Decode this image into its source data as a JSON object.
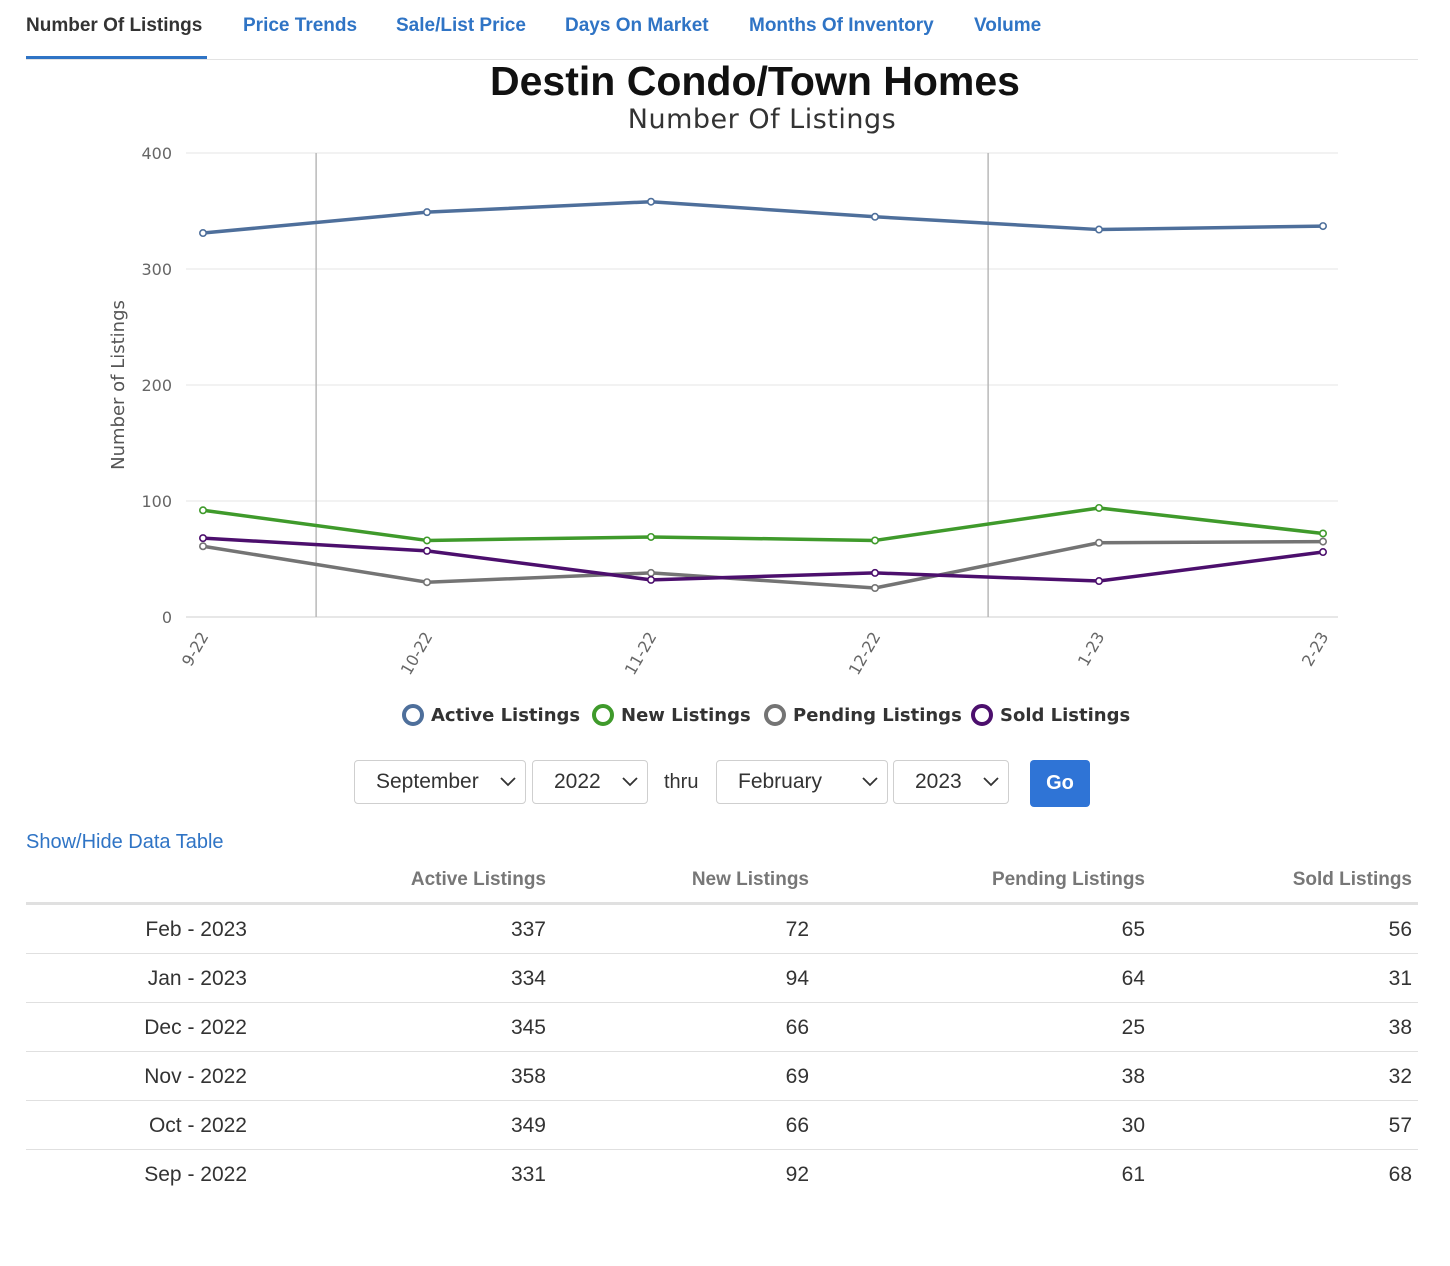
{
  "tabs": [
    {
      "label": "Number Of Listings",
      "active": true
    },
    {
      "label": "Price Trends",
      "active": false
    },
    {
      "label": "Sale/List Price",
      "active": false
    },
    {
      "label": "Days On Market",
      "active": false
    },
    {
      "label": "Months Of Inventory",
      "active": false
    },
    {
      "label": "Volume",
      "active": false
    }
  ],
  "title": "Destin Condo/Town Homes",
  "subtitle": "Number Of Listings",
  "chart_data": {
    "type": "line",
    "title": "Destin Condo/Town Homes",
    "subtitle": "Number Of Listings",
    "xlabel": "",
    "ylabel": "Number of Listings",
    "ylim": [
      0,
      400
    ],
    "yticks": [
      0,
      100,
      200,
      300,
      400
    ],
    "categories": [
      "9-22",
      "10-22",
      "11-22",
      "12-22",
      "1-23",
      "2-23"
    ],
    "grid": true,
    "year_markers_between": [
      [
        "9-22",
        "10-22"
      ],
      [
        "12-22",
        "1-23"
      ]
    ],
    "legend_position": "bottom",
    "series": [
      {
        "name": "Active Listings",
        "color": "#4e6f9b",
        "values": [
          331,
          349,
          358,
          345,
          334,
          337
        ]
      },
      {
        "name": "New Listings",
        "color": "#3f9a2b",
        "values": [
          92,
          66,
          69,
          66,
          94,
          72
        ]
      },
      {
        "name": "Pending Listings",
        "color": "#747474",
        "values": [
          61,
          30,
          38,
          25,
          64,
          65
        ]
      },
      {
        "name": "Sold Listings",
        "color": "#4c0f6d",
        "values": [
          68,
          57,
          32,
          38,
          31,
          56
        ]
      }
    ]
  },
  "controls": {
    "start_month": "September",
    "start_year": "2022",
    "thru_label": "thru",
    "end_month": "February",
    "end_year": "2023",
    "go_label": "Go"
  },
  "table_toggle_label": "Show/Hide Data Table",
  "table": {
    "headers": [
      "",
      "Active Listings",
      "New Listings",
      "Pending Listings",
      "Sold Listings"
    ],
    "rows": [
      [
        "Feb - 2023",
        "337",
        "72",
        "65",
        "56"
      ],
      [
        "Jan - 2023",
        "334",
        "94",
        "64",
        "31"
      ],
      [
        "Dec - 2022",
        "345",
        "66",
        "25",
        "38"
      ],
      [
        "Nov - 2022",
        "358",
        "69",
        "38",
        "32"
      ],
      [
        "Oct - 2022",
        "349",
        "66",
        "30",
        "57"
      ],
      [
        "Sep - 2022",
        "331",
        "92",
        "61",
        "68"
      ]
    ]
  }
}
